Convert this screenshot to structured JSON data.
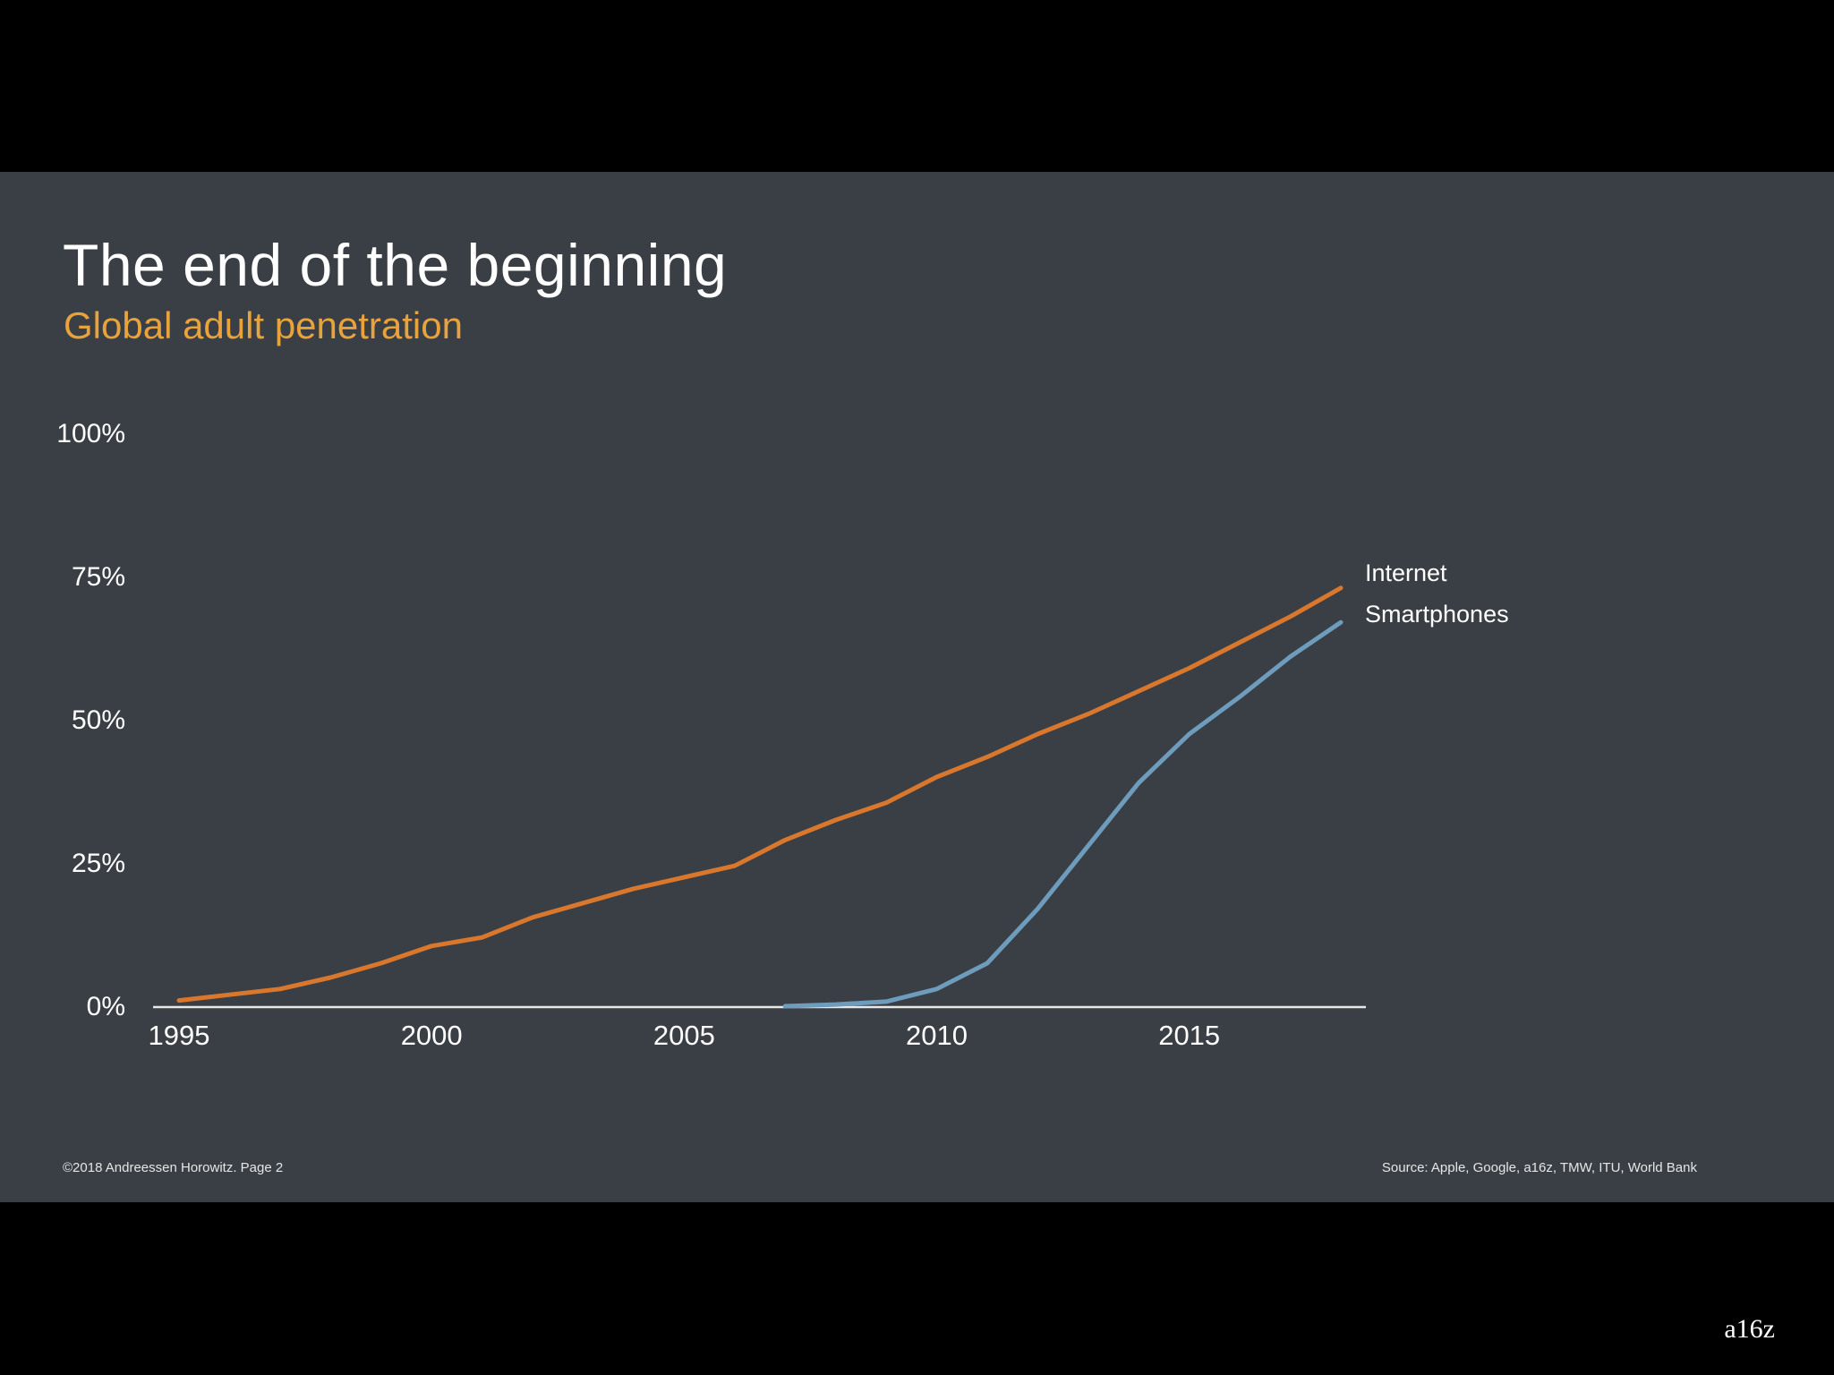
{
  "slide": {
    "title": "The end of the beginning",
    "subtitle": "Global adult penetration",
    "footer_left": "©2018 Andreessen Horowitz. Page 2",
    "footer_right": "Source: Apple, Google, a16z, TMW, ITU, World Bank"
  },
  "watermark": "a16z",
  "colors": {
    "background": "#3a3f45",
    "letterbox": "#000000",
    "accent": "#e8a33c",
    "internet": "#d9772d",
    "smartphones": "#6e9cbd",
    "axis": "#e8e8e8",
    "text": "#ffffff"
  },
  "chart_data": {
    "type": "line",
    "title": "The end of the beginning",
    "subtitle": "Global adult penetration",
    "xlabel": "",
    "ylabel": "",
    "xlim": [
      1995,
      2018
    ],
    "ylim": [
      0,
      100
    ],
    "x_ticks": [
      "1995",
      "2000",
      "2005",
      "2010",
      "2015"
    ],
    "x_tick_values": [
      1995,
      2000,
      2005,
      2010,
      2015
    ],
    "y_ticks": [
      "0%",
      "25%",
      "50%",
      "75%",
      "100%"
    ],
    "y_tick_values": [
      0,
      25,
      50,
      75,
      100
    ],
    "grid": false,
    "legend_placement": "line-end labels",
    "series": [
      {
        "name": "Internet",
        "x": [
          1995,
          1996,
          1997,
          1998,
          1999,
          2000,
          2001,
          2002,
          2003,
          2004,
          2005,
          2006,
          2007,
          2008,
          2009,
          2010,
          2011,
          2012,
          2013,
          2014,
          2015,
          2016,
          2017,
          2018
        ],
        "values": [
          1,
          2,
          3,
          5,
          7.5,
          10.5,
          12,
          15.5,
          18,
          20.5,
          22.5,
          24.5,
          29,
          32.5,
          35.5,
          40,
          43.5,
          47.5,
          51,
          55,
          59,
          63.5,
          68,
          73
        ]
      },
      {
        "name": "Smartphones",
        "x": [
          2007,
          2008,
          2009,
          2010,
          2011,
          2012,
          2013,
          2014,
          2015,
          2016,
          2017,
          2018
        ],
        "values": [
          0,
          0.3,
          0.8,
          3,
          7.5,
          17,
          28,
          39,
          47.5,
          54,
          61,
          67
        ]
      }
    ]
  }
}
